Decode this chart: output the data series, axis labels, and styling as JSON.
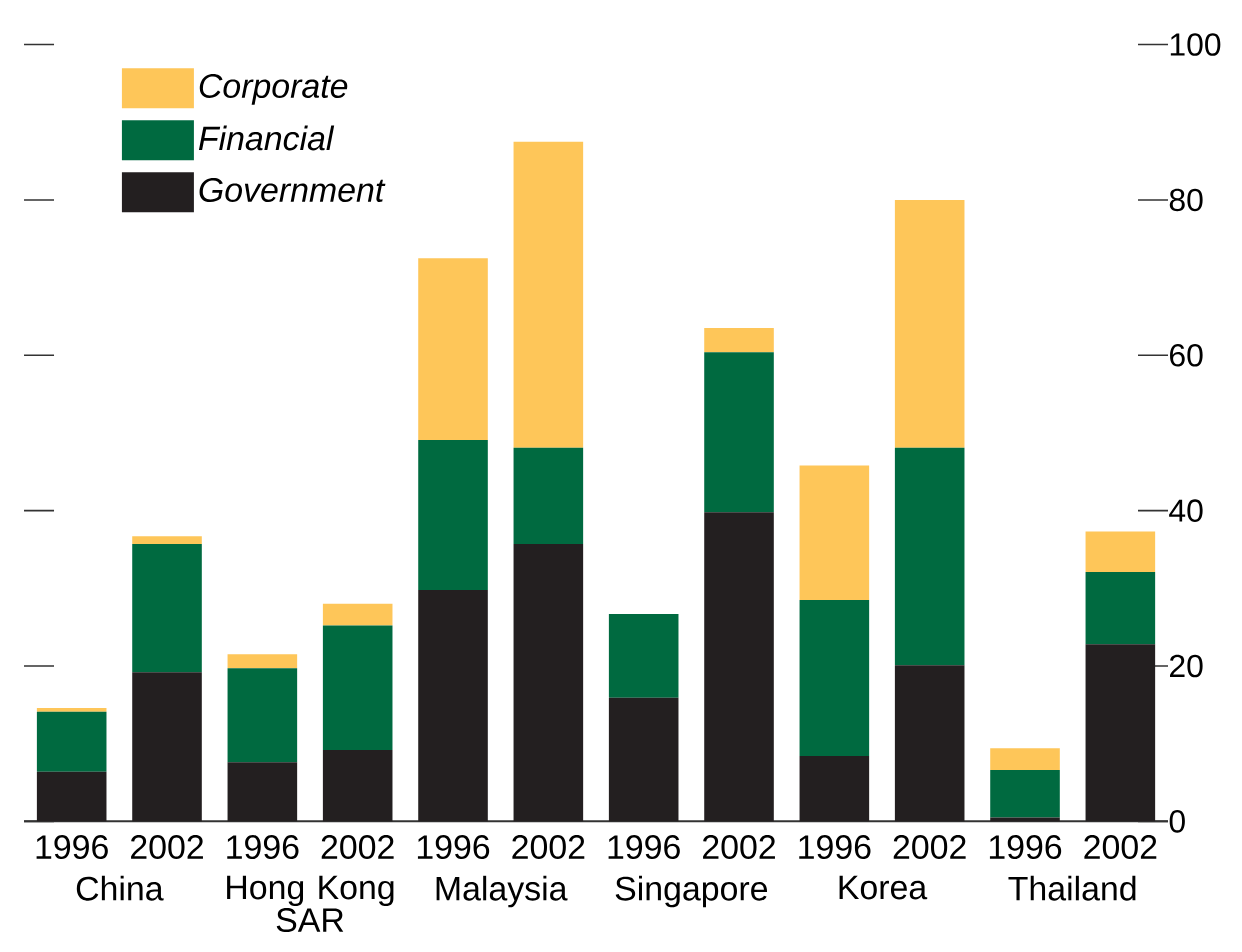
{
  "chart_data": {
    "type": "bar",
    "stacked": true,
    "categories": [
      "1996",
      "2002",
      "1996",
      "2002",
      "1996",
      "2002",
      "1996",
      "2002",
      "1996",
      "2002",
      "1996",
      "2002"
    ],
    "annotations": [
      "China",
      "Hong Kong SAR",
      "Malaysia",
      "Singapore",
      "Korea",
      "Thailand"
    ],
    "series": [
      {
        "name": "Government",
        "color": "#231f20",
        "values": [
          6.4,
          19.2,
          7.6,
          9.2,
          29.8,
          35.7,
          15.9,
          39.8,
          8.4,
          20.1,
          0.5,
          22.8
        ]
      },
      {
        "name": "Financial",
        "color": "#006a40",
        "values": [
          7.7,
          16.5,
          12.1,
          16.0,
          19.3,
          12.4,
          10.8,
          20.6,
          20.1,
          28.0,
          6.1,
          9.3
        ]
      },
      {
        "name": "Corporate",
        "color": "#fec659",
        "values": [
          0.5,
          1.0,
          1.8,
          2.8,
          23.4,
          39.4,
          0,
          3.1,
          17.3,
          31.9,
          2.8,
          5.2
        ]
      }
    ],
    "ylim": [
      0,
      100
    ],
    "yticks": [
      0,
      20,
      40,
      60,
      80,
      100
    ],
    "legend": "top left"
  }
}
